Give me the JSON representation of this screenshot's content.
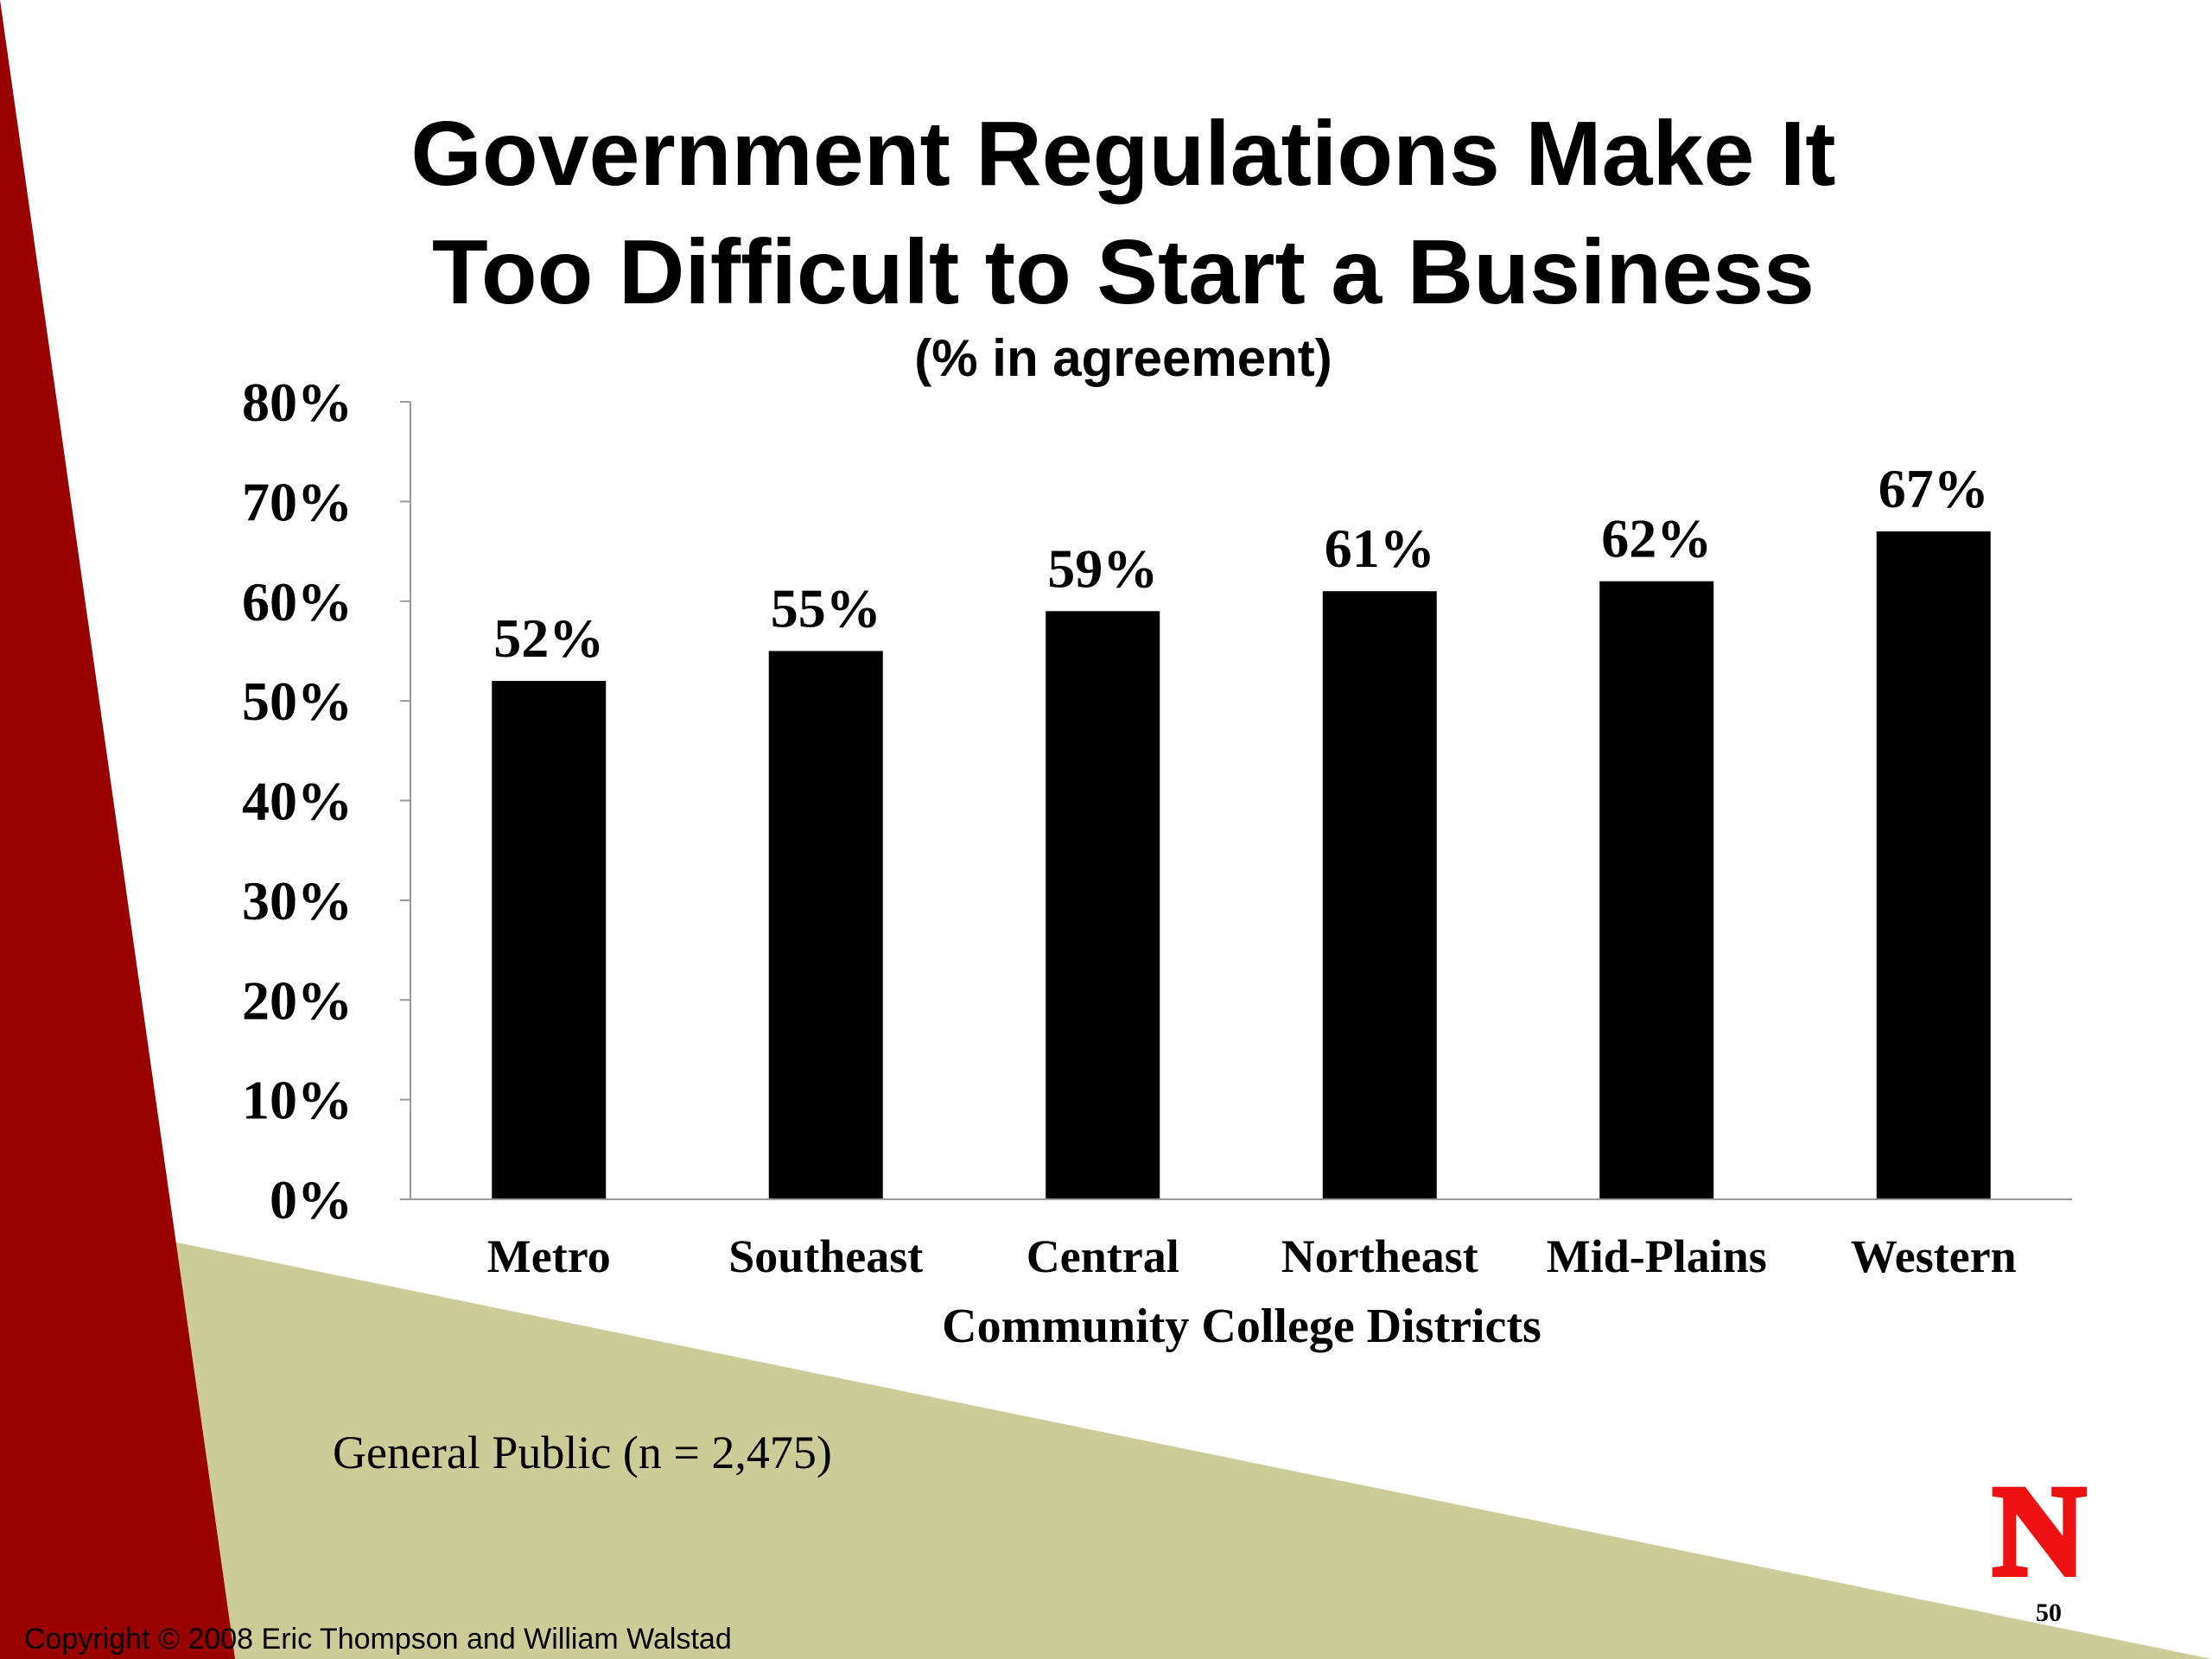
{
  "slide": {
    "title_line1": "Government Regulations Make It",
    "title_line2": "Too Difficult to Start a Business",
    "subtitle": "(% in agreement)",
    "note": "General Public (n = 2,475)",
    "copyright": "Copyright © 2008 Eric Thompson and William Walstad",
    "slide_number": "50",
    "logo_letter": "N",
    "colors": {
      "accent_red": "#990000",
      "accent_khaki": "#cccc99",
      "bar": "#000000",
      "logo_red": "#ee1111"
    }
  },
  "chart_data": {
    "type": "bar",
    "title": "Government Regulations Make It Too Difficult to Start a Business",
    "subtitle": "(% in agreement)",
    "xlabel": "Community College Districts",
    "ylabel": "",
    "categories": [
      "Metro",
      "Southeast",
      "Central",
      "Northeast",
      "Mid-Plains",
      "Western"
    ],
    "values": [
      52,
      55,
      59,
      61,
      62,
      67
    ],
    "data_labels": [
      "52%",
      "55%",
      "59%",
      "61%",
      "62%",
      "67%"
    ],
    "ylim": [
      0,
      80
    ],
    "yticks": [
      0,
      10,
      20,
      30,
      40,
      50,
      60,
      70,
      80
    ],
    "ytick_labels": [
      "0%",
      "10%",
      "20%",
      "30%",
      "40%",
      "50%",
      "60%",
      "70%",
      "80%"
    ],
    "grid": false,
    "legend": "none"
  }
}
